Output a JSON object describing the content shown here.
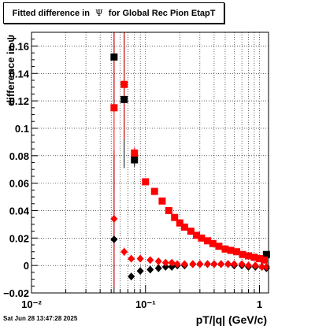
{
  "title": {
    "prefix": "Fitted difference in",
    "symbol": "Ψ",
    "suffix": "for Global Rec Pion EtapT"
  },
  "footer": {
    "timestamp": "Sat Jun 28 13:47:28 2025"
  },
  "chart_data": {
    "type": "scatter",
    "title": "Fitted difference in Ψ for Global Rec Pion EtapT",
    "xlabel": "pT/|q| (GeV/c)",
    "ylabel": "difference in ψ",
    "x_scale": "log",
    "xlim": [
      0.01,
      1.2
    ],
    "ylim": [
      -0.02,
      0.17
    ],
    "grid": true,
    "x_ticks": [
      {
        "value": 0.01,
        "label": "10⁻²"
      },
      {
        "value": 0.1,
        "label": "10⁻¹"
      },
      {
        "value": 1,
        "label": "1"
      }
    ],
    "y_ticks": [
      {
        "value": -0.02,
        "label": "−0.02"
      },
      {
        "value": 0,
        "label": "0"
      },
      {
        "value": 0.02,
        "label": "0.02"
      },
      {
        "value": 0.04,
        "label": "0.04"
      },
      {
        "value": 0.06,
        "label": "0.06"
      },
      {
        "value": 0.08,
        "label": "0.08"
      },
      {
        "value": 0.1,
        "label": "0.1"
      },
      {
        "value": 0.12,
        "label": "0.12"
      },
      {
        "value": 0.14,
        "label": "0.14"
      },
      {
        "value": 0.16,
        "label": "0.16"
      }
    ],
    "series": [
      {
        "marker": "square",
        "color": "#000000",
        "points": [
          {
            "x": 0.053,
            "y": 0.152,
            "err": 0.04
          },
          {
            "x": 0.065,
            "y": 0.121,
            "err": 0.05
          },
          {
            "x": 0.08,
            "y": 0.077,
            "err": 0.005
          },
          {
            "x": 1.15,
            "y": 0.008,
            "err": 0.001
          }
        ]
      },
      {
        "marker": "square",
        "color": "#ff0000",
        "points": [
          {
            "x": 0.053,
            "y": 0.115,
            "err": 0.06
          },
          {
            "x": 0.065,
            "y": 0.132,
            "err": 0.04
          },
          {
            "x": 0.08,
            "y": 0.082,
            "err": 0.004
          },
          {
            "x": 0.1,
            "y": 0.061,
            "err": 0.002
          },
          {
            "x": 0.12,
            "y": 0.054,
            "err": 0.002
          },
          {
            "x": 0.14,
            "y": 0.047,
            "err": 0.002
          },
          {
            "x": 0.16,
            "y": 0.04,
            "err": 0.002
          },
          {
            "x": 0.18,
            "y": 0.035,
            "err": 0.002
          },
          {
            "x": 0.2,
            "y": 0.031,
            "err": 0.001
          },
          {
            "x": 0.22,
            "y": 0.028,
            "err": 0.001
          },
          {
            "x": 0.25,
            "y": 0.025,
            "err": 0.001
          },
          {
            "x": 0.28,
            "y": 0.022,
            "err": 0.001
          },
          {
            "x": 0.31,
            "y": 0.02,
            "err": 0.001
          },
          {
            "x": 0.35,
            "y": 0.018,
            "err": 0.001
          },
          {
            "x": 0.39,
            "y": 0.016,
            "err": 0.001
          },
          {
            "x": 0.44,
            "y": 0.014,
            "err": 0.001
          },
          {
            "x": 0.5,
            "y": 0.012,
            "err": 0.001
          },
          {
            "x": 0.56,
            "y": 0.011,
            "err": 0.001
          },
          {
            "x": 0.63,
            "y": 0.01,
            "err": 0.001
          },
          {
            "x": 0.71,
            "y": 0.008,
            "err": 0.001
          },
          {
            "x": 0.8,
            "y": 0.007,
            "err": 0.001
          },
          {
            "x": 0.9,
            "y": 0.006,
            "err": 0.001
          },
          {
            "x": 1.0,
            "y": 0.005,
            "err": 0.001
          },
          {
            "x": 1.1,
            "y": 0.004,
            "err": 0.001
          }
        ]
      },
      {
        "marker": "diamond",
        "color": "#000000",
        "points": [
          {
            "x": 0.053,
            "y": 0.019,
            "err": 0.06
          },
          {
            "x": 0.075,
            "y": -0.008,
            "err": 0.002
          },
          {
            "x": 0.09,
            "y": -0.004,
            "err": 0.001
          },
          {
            "x": 0.11,
            "y": -0.003,
            "err": 0.001
          },
          {
            "x": 0.13,
            "y": -0.002,
            "err": 0.001
          },
          {
            "x": 0.15,
            "y": -0.001,
            "err": 0.001
          },
          {
            "x": 0.17,
            "y": -0.001,
            "err": 0.001
          },
          {
            "x": 0.19,
            "y": 0.0,
            "err": 0.001
          },
          {
            "x": 0.22,
            "y": 0.0,
            "err": 0.001
          },
          {
            "x": 0.26,
            "y": 0.001,
            "err": 0.001
          },
          {
            "x": 0.3,
            "y": 0.001,
            "err": 0.001
          },
          {
            "x": 0.35,
            "y": 0.001,
            "err": 0.001
          },
          {
            "x": 0.4,
            "y": 0.001,
            "err": 0.001
          },
          {
            "x": 0.46,
            "y": 0.001,
            "err": 0.001
          },
          {
            "x": 0.53,
            "y": 0.001,
            "err": 0.001
          },
          {
            "x": 0.6,
            "y": 0.0,
            "err": 0.001
          },
          {
            "x": 0.7,
            "y": 0.0,
            "err": 0.001
          },
          {
            "x": 0.8,
            "y": -0.001,
            "err": 0.001
          },
          {
            "x": 0.92,
            "y": -0.001,
            "err": 0.001
          },
          {
            "x": 1.05,
            "y": -0.001,
            "err": 0.001
          },
          {
            "x": 1.15,
            "y": -0.002,
            "err": 0.001
          }
        ]
      },
      {
        "marker": "diamond",
        "color": "#ff0000",
        "points": [
          {
            "x": 0.053,
            "y": 0.034,
            "err": 0.05
          },
          {
            "x": 0.065,
            "y": 0.01,
            "err": 0.003
          },
          {
            "x": 0.075,
            "y": 0.005,
            "err": 0.001
          },
          {
            "x": 0.09,
            "y": 0.005,
            "err": 0.001
          },
          {
            "x": 0.11,
            "y": 0.004,
            "err": 0.001
          },
          {
            "x": 0.13,
            "y": 0.003,
            "err": 0.001
          },
          {
            "x": 0.15,
            "y": 0.002,
            "err": 0.001
          },
          {
            "x": 0.17,
            "y": 0.002,
            "err": 0.001
          },
          {
            "x": 0.19,
            "y": 0.001,
            "err": 0.001
          },
          {
            "x": 0.22,
            "y": 0.001,
            "err": 0.001
          },
          {
            "x": 0.26,
            "y": 0.001,
            "err": 0.001
          },
          {
            "x": 0.3,
            "y": 0.001,
            "err": 0.001
          },
          {
            "x": 0.35,
            "y": 0.001,
            "err": 0.001
          },
          {
            "x": 0.4,
            "y": 0.001,
            "err": 0.001
          },
          {
            "x": 0.46,
            "y": 0.001,
            "err": 0.001
          },
          {
            "x": 0.53,
            "y": 0.001,
            "err": 0.001
          },
          {
            "x": 0.6,
            "y": 0.001,
            "err": 0.001
          },
          {
            "x": 0.7,
            "y": 0.001,
            "err": 0.001
          },
          {
            "x": 0.8,
            "y": 0.0,
            "err": 0.001
          },
          {
            "x": 0.92,
            "y": 0.0,
            "err": 0.001
          },
          {
            "x": 1.05,
            "y": -0.001,
            "err": 0.001
          },
          {
            "x": 1.15,
            "y": -0.001,
            "err": 0.001
          }
        ]
      }
    ]
  }
}
